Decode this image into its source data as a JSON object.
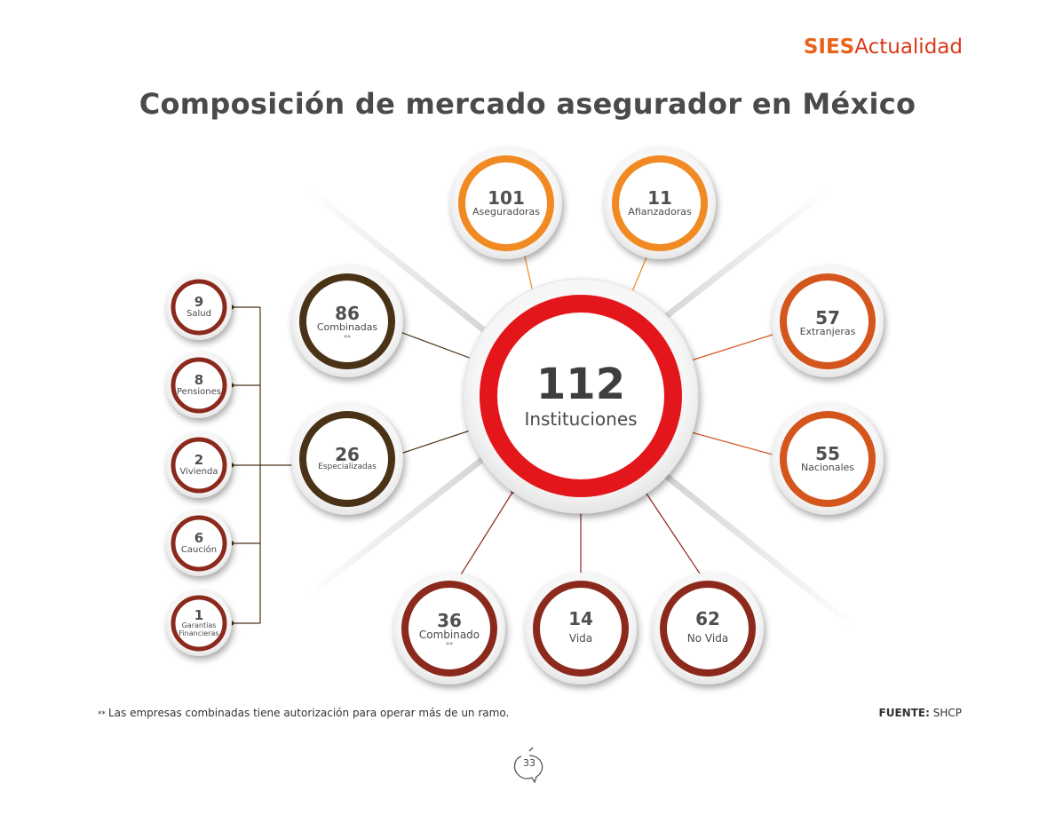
{
  "header": {
    "brand_part1": "SIES",
    "brand_part2": "Actualidad"
  },
  "title": "Composición de mercado asegurador en México",
  "center": {
    "value": "112",
    "label": "Instituciones"
  },
  "nodes": {
    "aseguradoras": {
      "value": "101",
      "label": "Aseguradoras"
    },
    "afianzadoras": {
      "value": "11",
      "label": "Afianzadoras"
    },
    "combinadas": {
      "value": "86",
      "label": "Combinadas",
      "mark": "**"
    },
    "especializadas": {
      "value": "26",
      "label": "Especializadas"
    },
    "extranjeras": {
      "value": "57",
      "label": "Extranjeras"
    },
    "nacionales": {
      "value": "55",
      "label": "Nacionales"
    },
    "combinado": {
      "value": "36",
      "label": "Combinado",
      "mark": "**"
    },
    "vida": {
      "value": "14",
      "label": "Vida"
    },
    "novida": {
      "value": "62",
      "label": "No Vida"
    },
    "salud": {
      "value": "9",
      "label": "Salud"
    },
    "pensiones": {
      "value": "8",
      "label": "Pensiones"
    },
    "vivienda": {
      "value": "2",
      "label": "Vivienda"
    },
    "caucion": {
      "value": "6",
      "label": "Caución"
    },
    "garantias": {
      "value": "1",
      "label_line1": "Garantías",
      "label_line2": "Financieras"
    }
  },
  "footnote": {
    "mark": "**",
    "text": "Las empresas combinadas tiene autorización para operar más de un ramo."
  },
  "source": {
    "label": "FUENTE:",
    "value": "SHCP"
  },
  "page_number": "33",
  "colors": {
    "center_ring": "#e3191f",
    "orange_ring": "#f18a21",
    "orange_dark_ring": "#d4561c",
    "brown_ring": "#4a3215",
    "maroon_ring": "#8b2a1f",
    "title": "#4a4a4a",
    "brand_orange": "#e8631a",
    "brand_red": "#d93a1a"
  }
}
